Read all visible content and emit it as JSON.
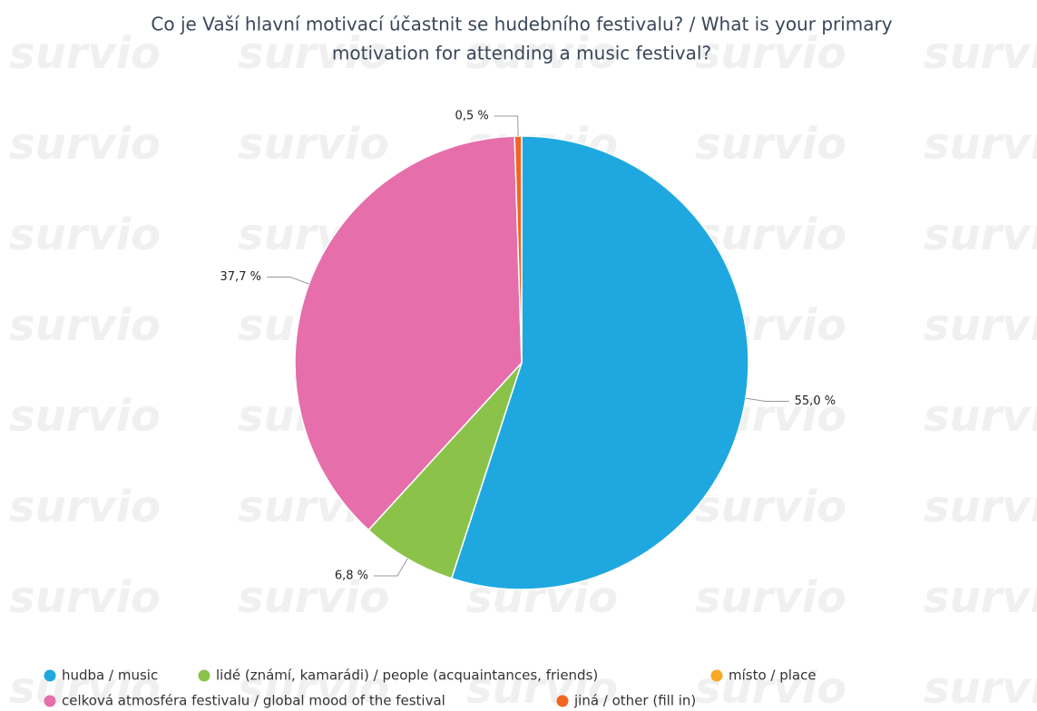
{
  "watermark": "survio",
  "chart_data": {
    "type": "pie",
    "title": [
      "Co je Vaší hlavní motivací účastnit se hudebního festivalu? / What is your primary",
      "motivation for attending a music festival?"
    ],
    "categories": [
      "hudba / music",
      "lidé (známí, kamarádi) / people (acquaintances, friends)",
      "místo / place",
      "celková atmosféra festivalu / global mood of the festival",
      "jiná / other (fill in)"
    ],
    "values": [
      55.0,
      6.8,
      0,
      37.7,
      0.5
    ],
    "value_labels": [
      "55,0 %",
      "6,8 %",
      null,
      "37,7 %",
      "0,5 %"
    ],
    "colors": [
      "#1fa8e0",
      "#8bc34a",
      "#f9a825",
      "#e56eab",
      "#f26522"
    ]
  }
}
